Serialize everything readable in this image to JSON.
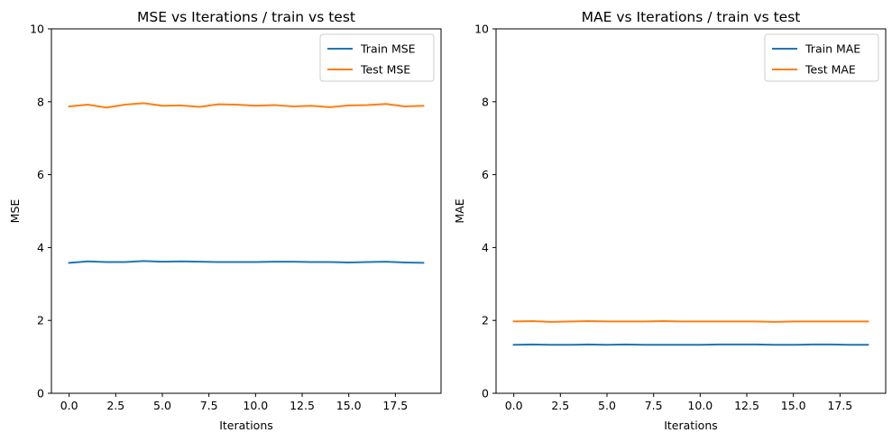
{
  "chart_data": [
    {
      "type": "line",
      "title": "MSE vs Iterations / train vs test",
      "xlabel": "Iterations",
      "ylabel": "MSE",
      "xlim": [
        -0.95,
        19.95
      ],
      "ylim": [
        0,
        10
      ],
      "x_ticks": [
        0.0,
        2.5,
        5.0,
        7.5,
        10.0,
        12.5,
        15.0,
        17.5
      ],
      "x_tick_labels": [
        "0.0",
        "2.5",
        "5.0",
        "7.5",
        "10.0",
        "12.5",
        "15.0",
        "17.5"
      ],
      "y_ticks": [
        0,
        2,
        4,
        6,
        8,
        10
      ],
      "y_tick_labels": [
        "0",
        "2",
        "4",
        "6",
        "8",
        "10"
      ],
      "grid": false,
      "legend": "top-right",
      "x": [
        0,
        1,
        2,
        3,
        4,
        5,
        6,
        7,
        8,
        9,
        10,
        11,
        12,
        13,
        14,
        15,
        16,
        17,
        18,
        19
      ],
      "series": [
        {
          "name": "Train MSE",
          "color": "#1f77b4",
          "values": [
            3.58,
            3.62,
            3.6,
            3.6,
            3.63,
            3.61,
            3.62,
            3.61,
            3.6,
            3.6,
            3.6,
            3.61,
            3.61,
            3.6,
            3.6,
            3.59,
            3.6,
            3.61,
            3.59,
            3.58
          ]
        },
        {
          "name": "Test MSE",
          "color": "#ff7f0e",
          "values": [
            7.87,
            7.92,
            7.84,
            7.92,
            7.96,
            7.89,
            7.9,
            7.86,
            7.93,
            7.92,
            7.89,
            7.91,
            7.87,
            7.89,
            7.85,
            7.9,
            7.91,
            7.94,
            7.87,
            7.89
          ]
        }
      ]
    },
    {
      "type": "line",
      "title": "MAE vs Iterations / train vs test",
      "xlabel": "Iterations",
      "ylabel": "MAE",
      "xlim": [
        -0.95,
        19.95
      ],
      "ylim": [
        0,
        10
      ],
      "x_ticks": [
        0.0,
        2.5,
        5.0,
        7.5,
        10.0,
        12.5,
        15.0,
        17.5
      ],
      "x_tick_labels": [
        "0.0",
        "2.5",
        "5.0",
        "7.5",
        "10.0",
        "12.5",
        "15.0",
        "17.5"
      ],
      "y_ticks": [
        0,
        2,
        4,
        6,
        8,
        10
      ],
      "y_tick_labels": [
        "0",
        "2",
        "4",
        "6",
        "8",
        "10"
      ],
      "grid": false,
      "legend": "top-right",
      "x": [
        0,
        1,
        2,
        3,
        4,
        5,
        6,
        7,
        8,
        9,
        10,
        11,
        12,
        13,
        14,
        15,
        16,
        17,
        18,
        19
      ],
      "series": [
        {
          "name": "Train MAE",
          "color": "#1f77b4",
          "values": [
            1.33,
            1.34,
            1.33,
            1.33,
            1.34,
            1.33,
            1.34,
            1.33,
            1.33,
            1.33,
            1.33,
            1.34,
            1.34,
            1.34,
            1.33,
            1.33,
            1.34,
            1.34,
            1.33,
            1.33
          ]
        },
        {
          "name": "Test MAE",
          "color": "#ff7f0e",
          "values": [
            1.97,
            1.98,
            1.96,
            1.97,
            1.98,
            1.97,
            1.97,
            1.97,
            1.98,
            1.97,
            1.97,
            1.97,
            1.97,
            1.97,
            1.96,
            1.97,
            1.97,
            1.97,
            1.97,
            1.97
          ]
        }
      ]
    }
  ]
}
